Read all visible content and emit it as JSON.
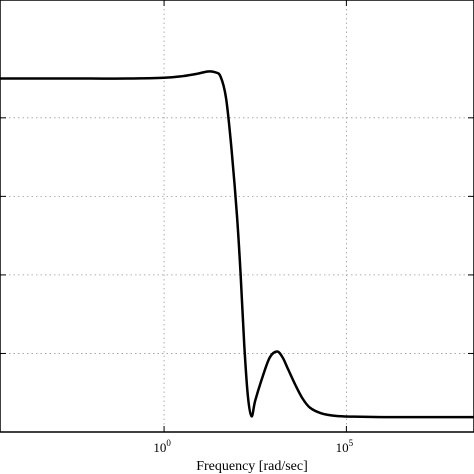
{
  "chart_data": {
    "type": "line",
    "xlabel": "Frequency [rad/sec]",
    "ylabel": "",
    "xscale": "log",
    "xlim_log10": [
      -4.5,
      8.5
    ],
    "ylim": [
      0,
      1.1
    ],
    "grid": true,
    "grid_style": "dotted",
    "x_ticks": [
      {
        "exponent": 0,
        "base": "10",
        "exp_label": "0"
      },
      {
        "exponent": 5,
        "base": "10",
        "exp_label": "5"
      }
    ],
    "y_grid_values": [
      0.2,
      0.4,
      0.6,
      0.8
    ],
    "series": [
      {
        "color": "#000000",
        "points": [
          [
            -4.5,
            0.9
          ],
          [
            -3.0,
            0.9
          ],
          [
            -2.0,
            0.9
          ],
          [
            -1.0,
            0.9
          ],
          [
            0.0,
            0.902
          ],
          [
            0.5,
            0.906
          ],
          [
            0.9,
            0.912
          ],
          [
            1.2,
            0.918
          ],
          [
            1.4,
            0.916
          ],
          [
            1.55,
            0.905
          ],
          [
            1.7,
            0.85
          ],
          [
            1.85,
            0.72
          ],
          [
            2.0,
            0.55
          ],
          [
            2.1,
            0.4
          ],
          [
            2.2,
            0.22
          ],
          [
            2.3,
            0.09
          ],
          [
            2.4,
            0.04
          ],
          [
            2.5,
            0.08
          ],
          [
            2.7,
            0.14
          ],
          [
            2.9,
            0.19
          ],
          [
            3.1,
            0.205
          ],
          [
            3.25,
            0.19
          ],
          [
            3.4,
            0.16
          ],
          [
            3.6,
            0.12
          ],
          [
            3.8,
            0.085
          ],
          [
            4.0,
            0.062
          ],
          [
            4.3,
            0.048
          ],
          [
            4.7,
            0.041
          ],
          [
            5.2,
            0.039
          ],
          [
            6.0,
            0.038
          ],
          [
            7.0,
            0.038
          ],
          [
            8.5,
            0.038
          ]
        ]
      }
    ]
  }
}
